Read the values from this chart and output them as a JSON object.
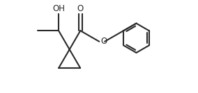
{
  "bg_color": "#ffffff",
  "line_color": "#2a2a2a",
  "line_width": 1.5,
  "font_size": 8.5,
  "figsize": [
    2.84,
    1.34
  ],
  "dpi": 100,
  "xlim": [
    0,
    10
  ],
  "ylim": [
    0,
    4.7
  ]
}
